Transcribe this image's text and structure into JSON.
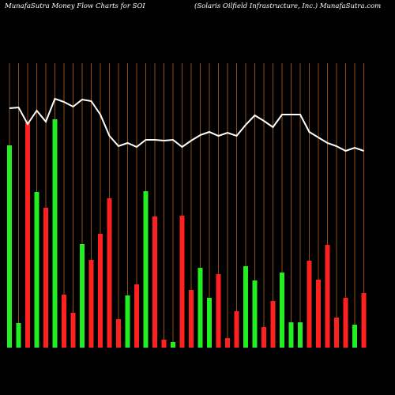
{
  "chart_data": {
    "type": "bar",
    "title": "MunafaSutra  Money Flow  Charts for SOI",
    "subtitle": "(Solaris Oilfield Infrastructure,  Inc.) MunafaSutra.com",
    "categories": [
      null,
      null,
      null,
      null,
      null,
      null,
      null,
      null,
      null,
      null,
      null,
      null,
      null,
      null,
      null,
      null,
      null,
      null,
      null,
      null,
      null,
      null,
      null,
      null,
      null,
      null,
      null,
      null,
      null,
      null,
      null,
      null,
      null,
      null,
      null,
      null,
      null,
      null,
      null,
      null
    ],
    "series": [
      {
        "type": "bar",
        "values": [
          256,
          31,
          285,
          197,
          177,
          289,
          67,
          44,
          131,
          111,
          144,
          189,
          36,
          66,
          80,
          198,
          166,
          10,
          7,
          167,
          73,
          101,
          63,
          93,
          12,
          46,
          103,
          85,
          26,
          59,
          95,
          32,
          32,
          110,
          86,
          130,
          38,
          63,
          29,
          69
        ],
        "colors": [
          "#22ee22",
          "#22ee22",
          "#ff2020",
          "#22ee22",
          "#ff2020",
          "#22ee22",
          "#ff2020",
          "#ff2020",
          "#22ee22",
          "#ff2020",
          "#ff2020",
          "#ff2020",
          "#ff2020",
          "#22ee22",
          "#ff2020",
          "#22ee22",
          "#ff2020",
          "#ff2020",
          "#22ee22",
          "#ff2020",
          "#ff2020",
          "#22ee22",
          "#22ee22",
          "#ff2020",
          "#ff2020",
          "#ff2020",
          "#22ee22",
          "#22ee22",
          "#ff2020",
          "#ff2020",
          "#22ee22",
          "#22ee22",
          "#22ee22",
          "#ff2020",
          "#ff2020",
          "#ff2020",
          "#ff2020",
          "#ff2020",
          "#22ee22",
          "#ff2020"
        ]
      },
      {
        "type": "line",
        "color": "#ffffff",
        "values": [
          303,
          304,
          283,
          300,
          286,
          315,
          311,
          305,
          314,
          312,
          295,
          268,
          255,
          259,
          254,
          263,
          263,
          262,
          263,
          254,
          262,
          269,
          273,
          268,
          272,
          268,
          282,
          294,
          287,
          279,
          295,
          295,
          295,
          273,
          266,
          259,
          255,
          249,
          253,
          249
        ]
      }
    ],
    "grid_color": "#b5651d"
  }
}
